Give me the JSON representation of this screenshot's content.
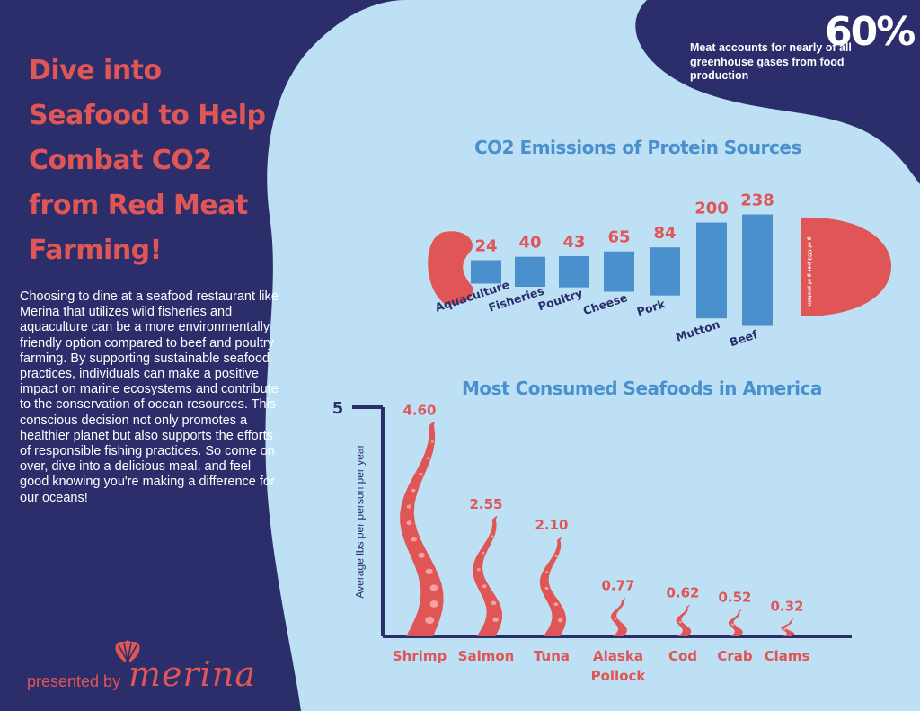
{
  "headline": [
    "Dive into",
    "Seafood to Help",
    "Combat CO2",
    "from Red Meat",
    "Farming!"
  ],
  "body": "Choosing to dine at a seafood restaurant like Merina that utilizes wild fisheries and aquaculture can be a more environmentally friendly option compared to beef and poultry farming. By supporting sustainable seafood practices, individuals can make a positive impact on marine ecosystems and contribute to the conservation of ocean resources. This conscious decision not only promotes a healthier planet but also supports the efforts of responsible fishing practices. So come on over, dive into a delicious meal, and feel good knowing you're making a difference for our oceans!",
  "footer": {
    "presented_by": "presented by",
    "brand": "merina",
    "logo_icon": "peacock-shell-logo-icon"
  },
  "stat": {
    "number": "60%",
    "text": "Meat accounts for nearly of all greenhouse gases from food production"
  },
  "colors": {
    "navy": "#2b2e6b",
    "light_blue": "#bde0f5",
    "coral": "#e05555",
    "bar_blue": "#4a90cc",
    "label_navy": "#2b2e6b"
  },
  "chart_data": [
    {
      "type": "bar",
      "title": "CO2 Emissions of Protein Sources",
      "ylabel": "g of CO2 per g of protein",
      "categories": [
        "Aquaculture",
        "Fisheries",
        "Poultry",
        "Cheese",
        "Pork",
        "Mutton",
        "Beef"
      ],
      "values": [
        24,
        40,
        43,
        65,
        84,
        200,
        238
      ],
      "value_labels": [
        "24",
        "40",
        "43",
        "65",
        "84",
        "200",
        "238"
      ],
      "style": "fish-shaped"
    },
    {
      "type": "bar",
      "title": "Most Consumed Seafoods in America",
      "ylabel": "Average lbs per person per year",
      "y_tick": "5",
      "ylim": [
        0,
        5
      ],
      "categories": [
        "Shrimp",
        "Salmon",
        "Tuna",
        "Alaska Pollock",
        "Cod",
        "Crab",
        "Clams"
      ],
      "category_lines": [
        [
          "Shrimp"
        ],
        [
          "Salmon"
        ],
        [
          "Tuna"
        ],
        [
          "Alaska",
          "Pollock"
        ],
        [
          "Cod"
        ],
        [
          "Crab"
        ],
        [
          "Clams"
        ]
      ],
      "values": [
        4.6,
        2.55,
        2.1,
        0.77,
        0.62,
        0.52,
        0.32
      ],
      "value_labels": [
        "4.60",
        "2.55",
        "2.10",
        "0.77",
        "0.62",
        "0.52",
        "0.32"
      ],
      "style": "tentacle"
    }
  ]
}
